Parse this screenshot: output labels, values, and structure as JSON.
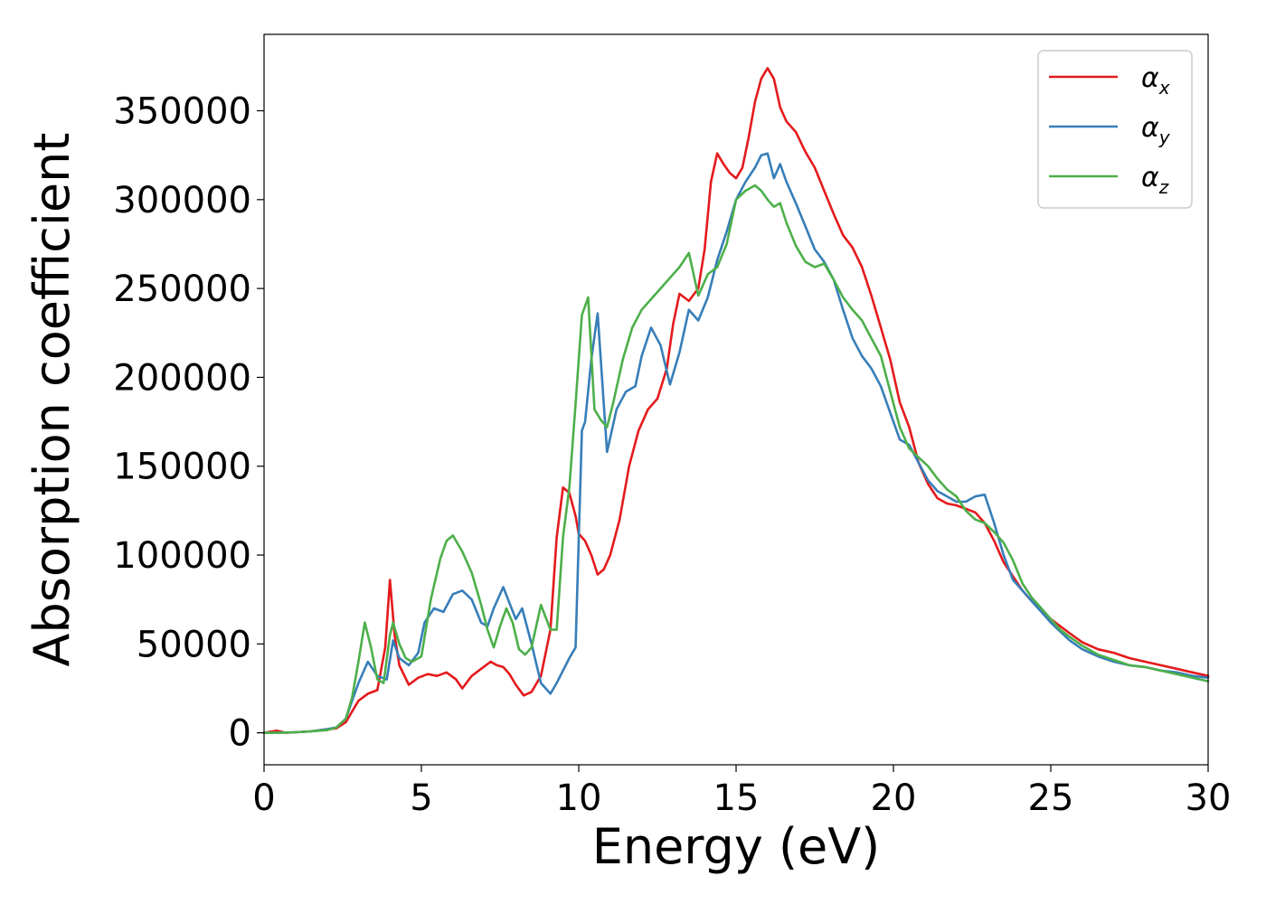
{
  "chart_data": {
    "type": "line",
    "title": "",
    "xlabel": "Energy (eV)",
    "ylabel": "Absorption coefficient",
    "xlim": [
      0,
      30
    ],
    "ylim": [
      -18000,
      393000
    ],
    "xticks": [
      "0",
      "5",
      "10",
      "15",
      "20",
      "25",
      "30"
    ],
    "yticks": [
      "0",
      "50000",
      "100000",
      "150000",
      "200000",
      "250000",
      "300000",
      "350000"
    ],
    "grid": false,
    "legend_position": "top-right",
    "series": [
      {
        "name": "αx",
        "symbol": "α",
        "subscript": "x",
        "color": "#e41a1c",
        "x": [
          0,
          0.4,
          0.7,
          1.0,
          1.5,
          2.0,
          2.3,
          2.6,
          2.8,
          3.0,
          3.3,
          3.6,
          3.85,
          4.0,
          4.15,
          4.3,
          4.6,
          4.9,
          5.2,
          5.5,
          5.8,
          6.1,
          6.3,
          6.6,
          6.9,
          7.2,
          7.4,
          7.6,
          7.8,
          8.0,
          8.25,
          8.5,
          8.8,
          9.1,
          9.3,
          9.5,
          9.7,
          9.9,
          10.0,
          10.2,
          10.4,
          10.6,
          10.8,
          11.0,
          11.3,
          11.6,
          11.9,
          12.2,
          12.5,
          12.8,
          13.0,
          13.2,
          13.5,
          13.8,
          14.0,
          14.2,
          14.4,
          14.6,
          14.8,
          15.0,
          15.2,
          15.4,
          15.6,
          15.8,
          16.0,
          16.2,
          16.4,
          16.6,
          16.9,
          17.2,
          17.5,
          17.8,
          18.1,
          18.4,
          18.7,
          19.0,
          19.3,
          19.6,
          19.9,
          20.2,
          20.5,
          20.8,
          21.1,
          21.4,
          21.7,
          22.0,
          22.3,
          22.6,
          22.9,
          23.2,
          23.5,
          23.8,
          24.1,
          24.4,
          24.7,
          25.0,
          25.3,
          25.6,
          26.0,
          26.5,
          27.0,
          27.5,
          28.0,
          28.5,
          29.0,
          29.5,
          30.0
        ],
        "values": [
          0,
          1200,
          0,
          300,
          800,
          2000,
          2500,
          6000,
          12000,
          18000,
          22000,
          24000,
          48000,
          86000,
          55000,
          38000,
          27000,
          31000,
          33000,
          32000,
          34000,
          30000,
          25000,
          32000,
          36000,
          40000,
          38000,
          37000,
          33000,
          27000,
          21000,
          23000,
          32000,
          58000,
          110000,
          138000,
          135000,
          122000,
          112000,
          108000,
          100000,
          89000,
          92000,
          100000,
          120000,
          150000,
          170000,
          182000,
          188000,
          205000,
          230000,
          247000,
          243000,
          250000,
          272000,
          310000,
          326000,
          320000,
          315000,
          312000,
          318000,
          335000,
          355000,
          368000,
          374000,
          368000,
          352000,
          344000,
          338000,
          327000,
          318000,
          305000,
          292000,
          280000,
          273000,
          262000,
          246000,
          228000,
          210000,
          186000,
          172000,
          152000,
          140000,
          132000,
          129000,
          128000,
          126000,
          124000,
          118000,
          108000,
          96000,
          88000,
          80000,
          74000,
          69000,
          64000,
          60000,
          56000,
          51000,
          47000,
          45000,
          42000,
          40000,
          38000,
          36000,
          34000,
          32000
        ]
      },
      {
        "name": "αy",
        "symbol": "α",
        "subscript": "y",
        "color": "#377eb8",
        "x": [
          0,
          0.4,
          1.0,
          1.5,
          2.0,
          2.3,
          2.6,
          2.8,
          3.0,
          3.3,
          3.6,
          3.9,
          4.1,
          4.3,
          4.6,
          4.9,
          5.1,
          5.4,
          5.7,
          6.0,
          6.3,
          6.6,
          6.9,
          7.1,
          7.3,
          7.6,
          7.8,
          8.0,
          8.2,
          8.5,
          8.8,
          9.1,
          9.3,
          9.5,
          9.7,
          9.9,
          10.1,
          10.2,
          10.4,
          10.6,
          10.9,
          11.2,
          11.5,
          11.8,
          12.0,
          12.3,
          12.6,
          12.9,
          13.2,
          13.5,
          13.8,
          14.1,
          14.4,
          14.7,
          15.0,
          15.3,
          15.6,
          15.8,
          16.0,
          16.2,
          16.4,
          16.6,
          16.9,
          17.2,
          17.5,
          17.8,
          18.1,
          18.4,
          18.7,
          19.0,
          19.3,
          19.6,
          19.9,
          20.2,
          20.5,
          20.8,
          21.1,
          21.4,
          21.7,
          22.0,
          22.3,
          22.6,
          22.9,
          23.2,
          23.5,
          23.8,
          24.1,
          24.4,
          24.7,
          25.0,
          25.3,
          25.6,
          26.0,
          26.5,
          27.0,
          27.5,
          28.0,
          28.5,
          29.0,
          29.5,
          30.0
        ],
        "values": [
          0,
          0,
          300,
          800,
          2000,
          3000,
          8000,
          18000,
          28000,
          40000,
          32000,
          30000,
          52000,
          42000,
          38000,
          45000,
          62000,
          70000,
          68000,
          78000,
          80000,
          75000,
          62000,
          60000,
          70000,
          82000,
          73000,
          64000,
          70000,
          50000,
          28000,
          22000,
          28000,
          35000,
          42000,
          48000,
          170000,
          175000,
          210000,
          236000,
          158000,
          182000,
          192000,
          195000,
          212000,
          228000,
          218000,
          196000,
          214000,
          238000,
          232000,
          245000,
          266000,
          282000,
          300000,
          310000,
          318000,
          325000,
          326000,
          312000,
          320000,
          310000,
          298000,
          285000,
          272000,
          265000,
          255000,
          238000,
          222000,
          212000,
          205000,
          195000,
          180000,
          165000,
          162000,
          152000,
          142000,
          136000,
          133000,
          130000,
          130000,
          133000,
          134000,
          118000,
          100000,
          86000,
          80000,
          74000,
          68000,
          62000,
          57000,
          52000,
          47000,
          43000,
          40000,
          38000,
          37000,
          35000,
          34000,
          32000,
          31000
        ]
      },
      {
        "name": "αz",
        "symbol": "α",
        "subscript": "z",
        "color": "#4daf4a",
        "x": [
          0,
          0.5,
          1.0,
          1.5,
          2.0,
          2.3,
          2.6,
          2.8,
          3.0,
          3.2,
          3.4,
          3.6,
          3.8,
          4.0,
          4.1,
          4.3,
          4.5,
          4.7,
          5.0,
          5.3,
          5.6,
          5.8,
          6.0,
          6.3,
          6.6,
          6.9,
          7.1,
          7.3,
          7.5,
          7.7,
          7.9,
          8.1,
          8.3,
          8.5,
          8.8,
          9.1,
          9.3,
          9.5,
          9.7,
          9.9,
          10.1,
          10.3,
          10.5,
          10.7,
          10.9,
          11.1,
          11.4,
          11.7,
          12.0,
          12.3,
          12.6,
          12.9,
          13.2,
          13.5,
          13.8,
          14.1,
          14.4,
          14.7,
          15.0,
          15.3,
          15.6,
          15.8,
          16.0,
          16.2,
          16.4,
          16.6,
          16.9,
          17.2,
          17.5,
          17.8,
          18.1,
          18.4,
          18.7,
          19.0,
          19.3,
          19.6,
          19.9,
          20.2,
          20.5,
          20.8,
          21.1,
          21.4,
          21.7,
          22.0,
          22.3,
          22.6,
          22.9,
          23.2,
          23.5,
          23.8,
          24.1,
          24.4,
          24.7,
          25.0,
          25.3,
          25.6,
          26.0,
          26.5,
          27.0,
          27.5,
          28.0,
          28.5,
          29.0,
          29.5,
          30.0
        ],
        "values": [
          0,
          0,
          300,
          800,
          1500,
          3000,
          8000,
          20000,
          40000,
          62000,
          48000,
          30000,
          28000,
          55000,
          62000,
          50000,
          42000,
          40000,
          43000,
          75000,
          98000,
          108000,
          111000,
          102000,
          90000,
          72000,
          58000,
          48000,
          60000,
          70000,
          62000,
          47000,
          44000,
          48000,
          72000,
          58000,
          58000,
          110000,
          138000,
          185000,
          235000,
          245000,
          182000,
          176000,
          172000,
          186000,
          210000,
          228000,
          238000,
          244000,
          250000,
          256000,
          262000,
          270000,
          246000,
          258000,
          262000,
          275000,
          300000,
          305000,
          308000,
          305000,
          300000,
          296000,
          298000,
          287000,
          274000,
          265000,
          262000,
          264000,
          255000,
          245000,
          238000,
          232000,
          222000,
          212000,
          192000,
          172000,
          160000,
          155000,
          150000,
          143000,
          137000,
          133000,
          125000,
          120000,
          118000,
          113000,
          107000,
          97000,
          84000,
          76000,
          70000,
          64000,
          58000,
          54000,
          49000,
          44000,
          41000,
          38000,
          37000,
          35000,
          33000,
          31000,
          29000
        ]
      }
    ]
  }
}
